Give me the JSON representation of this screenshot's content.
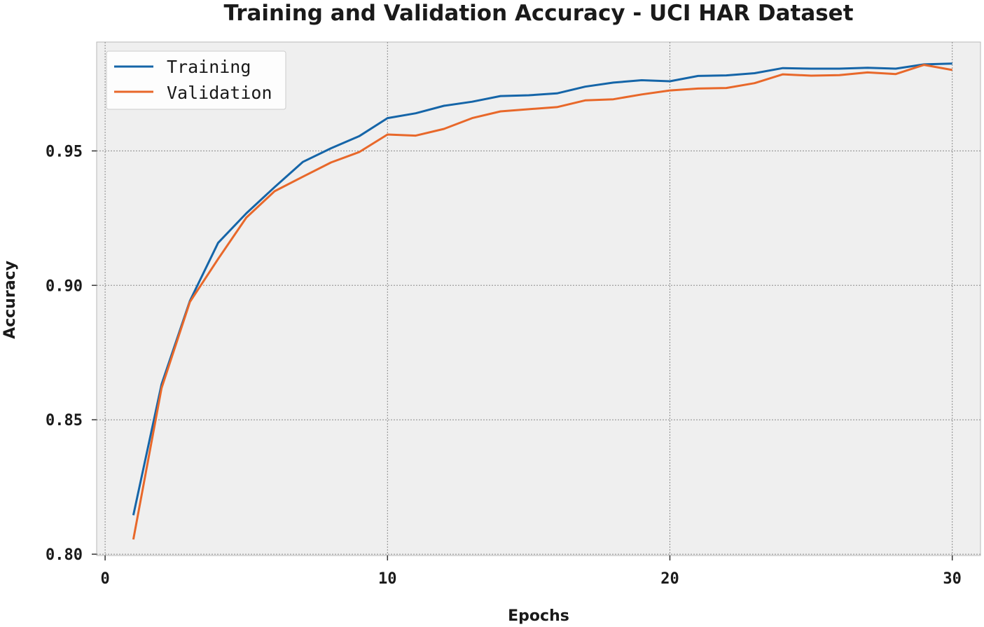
{
  "chart_data": {
    "type": "line",
    "title": "Training and Validation Accuracy - UCI HAR Dataset",
    "xlabel": "Epochs",
    "ylabel": "Accuracy",
    "xlim": [
      -0.3,
      31
    ],
    "ylim": [
      0.7995,
      0.9905
    ],
    "xticks": [
      0,
      10,
      20,
      30
    ],
    "xtick_labels": [
      "0",
      "10",
      "20",
      "30"
    ],
    "yticks": [
      0.8,
      0.85,
      0.9,
      0.95
    ],
    "ytick_labels": [
      "0.80",
      "0.85",
      "0.90",
      "0.95"
    ],
    "grid": true,
    "legend_position": "top-left",
    "x": [
      1,
      2,
      3,
      4,
      5,
      6,
      7,
      8,
      9,
      10,
      11,
      12,
      13,
      14,
      15,
      16,
      17,
      18,
      19,
      20,
      21,
      22,
      23,
      24,
      25,
      26,
      27,
      28,
      29,
      30
    ],
    "series": [
      {
        "name": "Training",
        "color": "#1565a8",
        "values": [
          0.8145,
          0.8632,
          0.8942,
          0.9158,
          0.9268,
          0.9365,
          0.9459,
          0.951,
          0.9555,
          0.9622,
          0.964,
          0.9668,
          0.9683,
          0.9704,
          0.9707,
          0.9714,
          0.9739,
          0.9754,
          0.9763,
          0.9759,
          0.9779,
          0.9781,
          0.9789,
          0.9808,
          0.9806,
          0.9806,
          0.9809,
          0.9806,
          0.9822,
          0.9825
        ]
      },
      {
        "name": "Validation",
        "color": "#e8682a",
        "values": [
          0.8055,
          0.8618,
          0.8938,
          0.9098,
          0.9252,
          0.935,
          0.9404,
          0.9457,
          0.9496,
          0.9561,
          0.9557,
          0.9582,
          0.9622,
          0.9647,
          0.9655,
          0.9663,
          0.9688,
          0.9692,
          0.971,
          0.9725,
          0.9732,
          0.9734,
          0.9752,
          0.9785,
          0.978,
          0.9782,
          0.9792,
          0.9786,
          0.982,
          0.9801
        ]
      }
    ]
  }
}
